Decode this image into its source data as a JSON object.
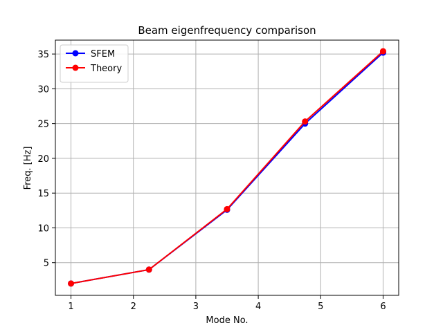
{
  "chart_data": {
    "type": "line",
    "title": "Beam eigenfrequency comparison",
    "xlabel": "Mode No.",
    "ylabel": "Freq. [Hz]",
    "xlim": [
      0.75,
      6.25
    ],
    "ylim": [
      0.3,
      37.0
    ],
    "xticks": [
      1,
      2,
      3,
      4,
      5,
      6
    ],
    "yticks": [
      5,
      10,
      15,
      20,
      25,
      30,
      35
    ],
    "grid": true,
    "legend_position": "top-left",
    "x": [
      1,
      2.25,
      3.5,
      4.75,
      6
    ],
    "series": [
      {
        "name": "SFEM",
        "color": "#0000ff",
        "values": [
          2.0,
          4.0,
          12.6,
          25.0,
          35.2
        ]
      },
      {
        "name": "Theory",
        "color": "#ff0000",
        "values": [
          2.0,
          4.0,
          12.7,
          25.3,
          35.4
        ]
      }
    ]
  }
}
